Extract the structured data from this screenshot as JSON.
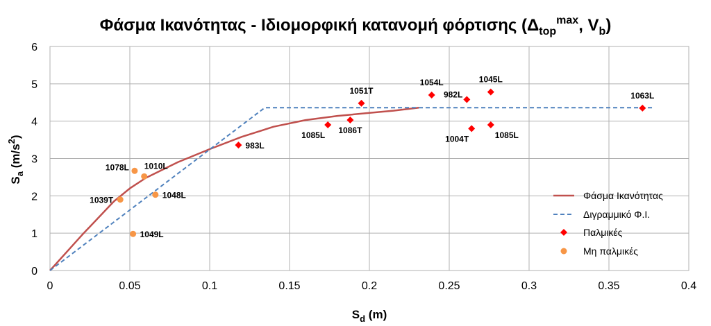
{
  "chart_data": {
    "type": "line",
    "title": {
      "main": "Φάσμα Ικανότητας - Ιδιομορφική κατανομή φόρτισης (Δ",
      "sub1": "top",
      "sup1": "max",
      "mid": ", V",
      "sub2": "b",
      "end": ")"
    },
    "xlabel": {
      "main": "S",
      "sub": "d",
      "rest": " (m)"
    },
    "ylabel": {
      "main": "S",
      "sub": "a",
      "rest1": " (m/s",
      "sup": "2",
      "rest2": ")"
    },
    "xlim": [
      0,
      0.4
    ],
    "ylim": [
      0,
      6
    ],
    "x_ticks": [
      "0",
      "0.05",
      "0.1",
      "0.15",
      "0.2",
      "0.25",
      "0.3",
      "0.35",
      "0.4"
    ],
    "x_tick_values": [
      0,
      0.05,
      0.1,
      0.15,
      0.2,
      0.25,
      0.3,
      0.35,
      0.4
    ],
    "y_ticks": [
      "0",
      "1",
      "2",
      "3",
      "4",
      "5",
      "6"
    ],
    "y_tick_values": [
      0,
      1,
      2,
      3,
      4,
      5,
      6
    ],
    "grid": true,
    "legend_position": "right",
    "series": [
      {
        "name": "Φάσμα Ικανότητας",
        "kind": "line",
        "color": "#c0504d",
        "x": [
          0,
          0.02,
          0.04,
          0.05,
          0.06,
          0.08,
          0.1,
          0.12,
          0.14,
          0.16,
          0.18,
          0.2,
          0.215,
          0.231
        ],
        "y": [
          0,
          0.95,
          1.85,
          2.2,
          2.48,
          2.9,
          3.25,
          3.58,
          3.85,
          4.03,
          4.14,
          4.22,
          4.28,
          4.36
        ]
      },
      {
        "name": "Διγραμμικό Φ.Ι.",
        "kind": "dashed",
        "color": "#4f81bd",
        "x": [
          0,
          0.1345,
          0.378
        ],
        "y": [
          0,
          4.36,
          4.36
        ]
      },
      {
        "name": "Παλμικές",
        "kind": "marker-diamond",
        "color": "#ff0000",
        "points": [
          {
            "x": 0.118,
            "y": 3.36,
            "label": "983L",
            "anchor": "right"
          },
          {
            "x": 0.174,
            "y": 3.9,
            "label": "1085L",
            "anchor": "below-left"
          },
          {
            "x": 0.188,
            "y": 4.03,
            "label": "1086T",
            "anchor": "below"
          },
          {
            "x": 0.195,
            "y": 4.48,
            "label": "1051T",
            "anchor": "above"
          },
          {
            "x": 0.239,
            "y": 4.7,
            "label": "1054L",
            "anchor": "above"
          },
          {
            "x": 0.261,
            "y": 4.58,
            "label": "982L",
            "anchor": "above-left"
          },
          {
            "x": 0.264,
            "y": 3.8,
            "label": "1004T",
            "anchor": "below-left"
          },
          {
            "x": 0.276,
            "y": 4.78,
            "label": "1045L",
            "anchor": "above"
          },
          {
            "x": 0.276,
            "y": 3.9,
            "label": "1085L",
            "anchor": "below-right"
          },
          {
            "x": 0.371,
            "y": 4.35,
            "label": "1063L",
            "anchor": "above"
          }
        ]
      },
      {
        "name": "Μη παλμικές",
        "kind": "marker-circle",
        "color": "#f79646",
        "points": [
          {
            "x": 0.044,
            "y": 1.9,
            "label": "1039T",
            "anchor": "left"
          },
          {
            "x": 0.052,
            "y": 0.98,
            "label": "1049L",
            "anchor": "right"
          },
          {
            "x": 0.053,
            "y": 2.67,
            "label": "1078L",
            "anchor": "left-up"
          },
          {
            "x": 0.059,
            "y": 2.52,
            "label": "1010L",
            "anchor": "right-up"
          },
          {
            "x": 0.066,
            "y": 2.03,
            "label": "1048L",
            "anchor": "right"
          }
        ]
      }
    ]
  }
}
